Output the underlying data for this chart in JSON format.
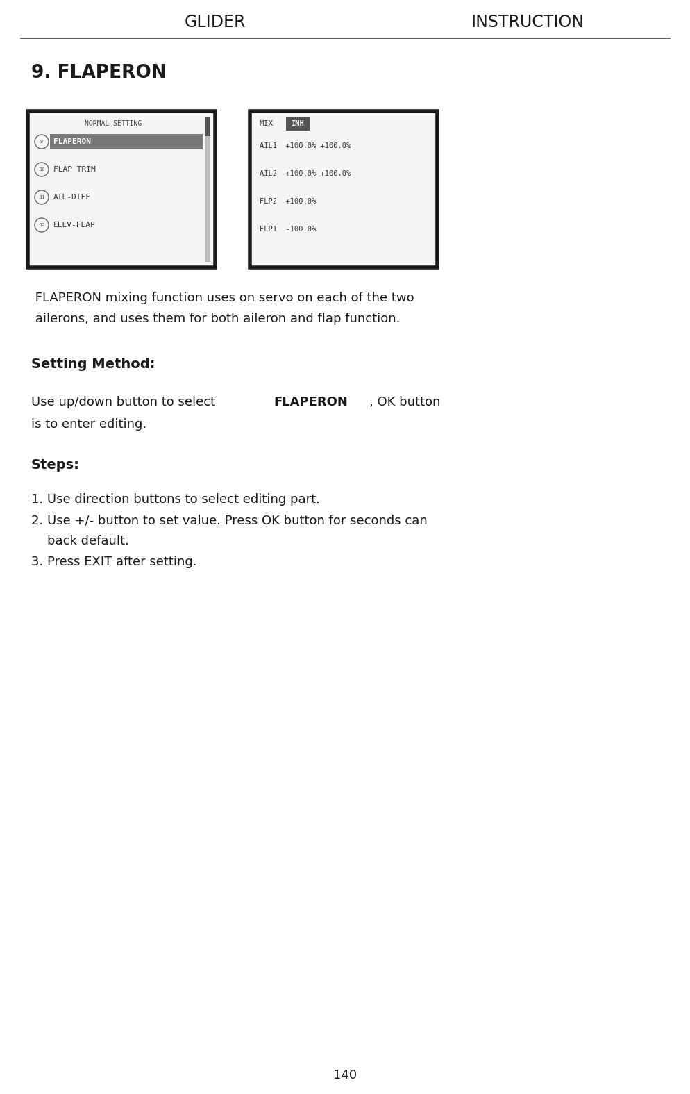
{
  "title_left": "GLIDER",
  "title_right": "INSTRUCTION",
  "section_title": "9. FLAPERON",
  "screen1_title": "NORMAL SETTING",
  "screen1_items": [
    {
      "num": "9",
      "text": "FLAPERON",
      "selected": true
    },
    {
      "num": "10",
      "text": "FLAP TRIM",
      "selected": false
    },
    {
      "num": "11",
      "text": "AIL-DIFF",
      "selected": false
    },
    {
      "num": "12",
      "text": "ELEV-FLAP",
      "selected": false
    }
  ],
  "screen2_title": "MIX",
  "screen2_inh": "INH",
  "screen2_items": [
    "AIL1  +100.0% +100.0%",
    "AIL2  +100.0% +100.0%",
    "FLP2  +100.0%",
    "FLP1  -100.0%"
  ],
  "desc_line1": "FLAPERON mixing function uses on servo on each of the two",
  "desc_line2": "ailerons, and uses them for both aileron and flap function.",
  "setting_method_label": "Setting Method:",
  "sm_pre": "Use up/down button to select ",
  "sm_bold": "FLAPERON",
  "sm_post": ", OK button",
  "sm_line2": "is to enter editing.",
  "steps_label": "Steps:",
  "steps": [
    "1. Use direction buttons to select editing part.",
    "2. Use +/- button to set value. Press OK button for seconds can",
    "    back default.",
    "3. Press EXIT after setting."
  ],
  "page_number": "140",
  "bg_color": "#ffffff",
  "text_color": "#1a1a1a",
  "screen_bg": "#f5f5f5",
  "screen_border": "#1a1a1a",
  "selected_bg": "#777777",
  "selected_fg": "#ffffff",
  "inh_bg": "#555555",
  "inh_fg": "#ffffff",
  "scrollbar_bg": "#bbbbbb",
  "scrollbar_thumb": "#555555"
}
